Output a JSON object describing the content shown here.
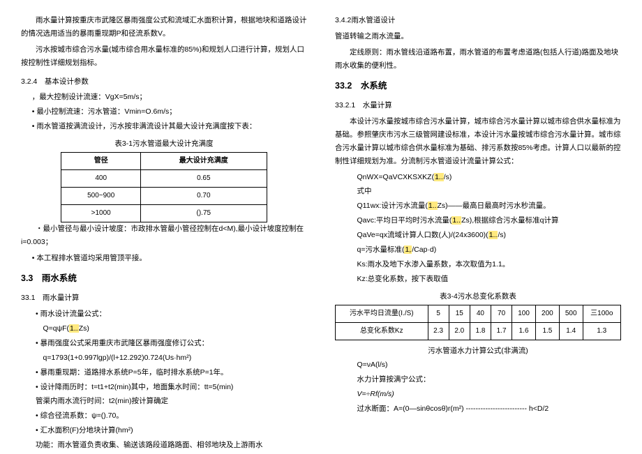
{
  "left": {
    "p1": "雨水量计算按重庆市武隆区暴雨强度公式和流域汇水面积计算，根据地块和道路设计的情况选用适当的暴雨重现期P和径流系数V。",
    "p2": "污水按城市综合污水量(城市综合用水量标准的85%)和规划人口进行计算，规划人口按控制性详细规划指标。",
    "s324": "3.2.4　基本设计参数",
    "i1": "，最大控制设计流速：VgX=5m/s；",
    "i2": "• 最小控制流速：污水管道：Vmin=O.6m/s；",
    "i3": "• 雨水管道按满流设计，污水按非满流设计其最大设计充满度按下表：",
    "t1cap": "表3-1污水管道最大设计充满度",
    "t1h1": "管径",
    "t1h2": "最大设计充满度",
    "t1r": [
      [
        "400",
        "0.65"
      ],
      [
        "500~900",
        "0.70"
      ],
      [
        ">1000",
        "().75"
      ]
    ],
    "i4": "・最小管径与最小设计坡度：市政排水管最小管径控制在d<M),最小设计坡度控制在i=0.003；",
    "i5": "• 本工程排水管道均采用管顶平接。",
    "s33": "3.3　雨水系统",
    "s331": "33.1　雨水量计算",
    "b1": "• 雨水设计流量公式：",
    "f1a": "Q=qψF(",
    "f1b": "1..",
    "f1c": "Zs)",
    "b2": "• 暴雨强度公式采用重庆市武隆区暴雨强度修订公式：",
    "f2": "q=1793(1+0.997lgp)/(l+12.292)0.724(Us·hm²)",
    "b3": "• 暴雨重现期：道路排水系统P=5年，临时排水系统P=1年。",
    "b4": "• 设计降雨历时：t=t1+t2(min)其中，地面集水时间：tt=5(min)",
    "b4b": "管渠内雨水流行时间：t2(min)按计算确定",
    "b5": "• 综合径流系数：ψ=().70。",
    "b6": "• 汇水面积(F)分地块计算(hm²)",
    "b7": "功能：雨水管道负责收集、输送该路段道路路面、相邻地块及上游雨水"
  },
  "right": {
    "p0": "3.4.2雨水管道设计",
    "p0b": "管道转输之雨水流量。",
    "p1": "定线原则：雨水管线沿道路布置，雨水管道的布置考虑道路(包括人行道)路面及地块雨水收集的便利性。",
    "s332": "33.2　水系统",
    "s3321": "33.2.1　水量计算",
    "p2": "本设计污水量按城市综合污水量计算，城市综合污水量计算以城市综合供水量标准为基础。参照肇庆市污水三级管网建设标准，本设计污水量按城市综合污水量计算。城市综合污水量计算以城市综合供水量标准为基础、排污系数按85%考虑。计算人口以最新的控制性详细规划为准。分流制污水管道设计流量计算公式：",
    "f3a": "QnWX=QaVCXKSXKZ(",
    "f3b": "1..",
    "f3c": "/s)",
    "p3": "式中",
    "f4a": "Q11wx:设计污水流量(",
    "f4b": "1..",
    "f4c": "Zs)——最高日最高时污水秒流量。",
    "f5a": "Qavc:平均日平均时污水流量(",
    "f5b": "1..",
    "f5c": "Zs),根据综合污水量标准q计算",
    "f6a": "QaVe=qx流域计算人口数(人)/(24x3600)(",
    "f6b": "1..",
    "f6c": "/s)",
    "f7a": "q=污水量标准(",
    "f7b": "1,",
    "f7c": "/Cap·d)",
    "f8": "Ks:雨水及地下水渗入量系数，本次取值为1.1。",
    "f9": "Kz:总变化系数，按下表取值",
    "t2cap": "表3-4污水总变化系数表",
    "t2h": [
      "污水平均日流量(I./S)",
      "5",
      "15",
      "40",
      "70",
      "100",
      "200",
      "500",
      "三100o"
    ],
    "t2r": [
      "总变化系数Kz",
      "2.3",
      "2.0",
      "1.8",
      "1.7",
      "1.6",
      "1.5",
      "1.4",
      "1.3"
    ],
    "p4": "污水管道水力计算公式(非满流)",
    "f10": "Q=νA(l/s)",
    "p5": "水力计算按满宁公式：",
    "f11": "V=÷Rf(m/s)",
    "f12": "过水断面：A=(0—sinθcosθ)r(m²) ------------------------- h<D/2"
  }
}
